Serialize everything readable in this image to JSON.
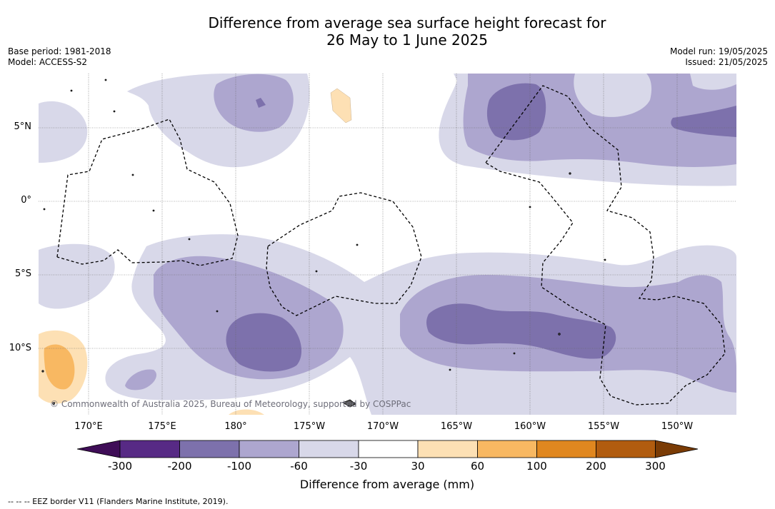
{
  "title": {
    "line1": "Difference from average sea surface height forecast for",
    "line2": "26 May to 1 June 2025"
  },
  "meta": {
    "base_period": "Base period: 1981-2018",
    "model": "Model: ACCESS-S2",
    "model_run": "Model run: 19/05/2025",
    "issued": "Issued: 21/05/2025"
  },
  "map": {
    "lat_labels": [
      "5°N",
      "0°",
      "5°S",
      "10°S"
    ],
    "lon_labels": [
      "170°E",
      "175°E",
      "180°",
      "175°W",
      "170°W",
      "165°W",
      "160°W",
      "155°W",
      "150°W"
    ],
    "copyright": "© Commonwealth of Australia 2025, Bureau of Meteorology, supported by COSPPac"
  },
  "colorbar": {
    "title": "Difference from average (mm)",
    "ticks": [
      "-300",
      "-200",
      "-100",
      "-60",
      "-30",
      "30",
      "60",
      "100",
      "200",
      "300"
    ],
    "colors": [
      "#3f0d57",
      "#572a85",
      "#7d71ac",
      "#ada6cf",
      "#d8d8e9",
      "#ffffff",
      "#fde0b4",
      "#f8b862",
      "#e0871f",
      "#b15c0f",
      "#7a3b05"
    ]
  },
  "footer": "--  --  -- EEZ border V11 (Flanders Marine Institute, 2019)."
}
